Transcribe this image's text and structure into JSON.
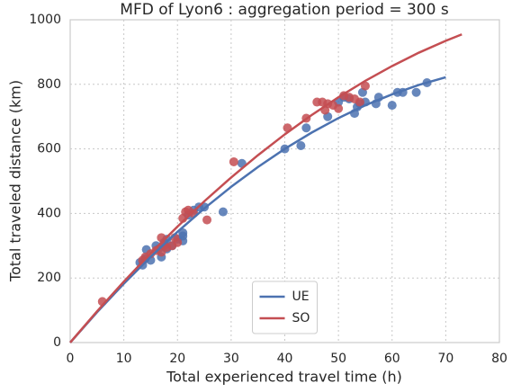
{
  "chart_data": {
    "type": "scatter",
    "title": "MFD of Lyon6 : aggregation period = 300 s",
    "x_label": "Total experienced travel time (h)",
    "y_label": "Total traveled distance (km)",
    "xlim": [
      0,
      80
    ],
    "xticks": [
      0,
      10,
      20,
      30,
      40,
      50,
      60,
      70,
      80
    ],
    "ylim": [
      0,
      1000
    ],
    "yticks": [
      0,
      200,
      400,
      600,
      800,
      1000
    ],
    "grid": true,
    "legend": "lower center",
    "series": [
      {
        "name": "UE",
        "color": "#4c72b0",
        "x": [
          0,
          5,
          10,
          15,
          20,
          25,
          30,
          35,
          40,
          45,
          50,
          55,
          60,
          65,
          70
        ],
        "values": [
          0,
          94,
          182.5,
          265.7,
          343,
          415.6,
          482.5,
          543.9,
          600,
          650.4,
          695.5,
          735.2,
          769,
          798.3,
          822
        ],
        "points": {
          "x": [
            13,
            13.5,
            14,
            14.2,
            15,
            16,
            16.5,
            17,
            17.5,
            18,
            18,
            19,
            20,
            21,
            21,
            21,
            22,
            23,
            24,
            25,
            28.5,
            32,
            40,
            43,
            44,
            48,
            50,
            51,
            52,
            53,
            53.5,
            54,
            54.5,
            55,
            57,
            57.5,
            60,
            61,
            62,
            64.5,
            66.5
          ],
          "values": [
            248,
            240,
            260,
            288,
            255,
            300,
            290,
            265,
            310,
            320,
            290,
            300,
            320,
            340,
            315,
            330,
            395,
            410,
            420,
            420,
            405,
            555,
            600,
            610,
            665,
            700,
            745,
            760,
            755,
            710,
            730,
            740,
            775,
            745,
            740,
            760,
            735,
            775,
            775,
            775,
            805
          ]
        }
      },
      {
        "name": "SO",
        "color": "#c44e52",
        "x": [
          0,
          5,
          10,
          15,
          20,
          25,
          30,
          35,
          40,
          45,
          50,
          55,
          60,
          65,
          70,
          73
        ],
        "values": [
          0,
          96.7,
          188.9,
          276.5,
          359.3,
          437.7,
          511.3,
          580.5,
          645,
          704.8,
          760,
          810.7,
          856.7,
          898.2,
          934.9,
          954.8
        ],
        "points": {
          "x": [
            6,
            13.5,
            14,
            15,
            16,
            17,
            17,
            17.5,
            18,
            19,
            19.5,
            20,
            21,
            21.5,
            22,
            23,
            25.5,
            30.5,
            40.5,
            44,
            46,
            47,
            47.5,
            48,
            49,
            50,
            51,
            52,
            53,
            54,
            55
          ],
          "values": [
            127,
            255,
            265,
            275,
            285,
            280,
            325,
            300,
            295,
            300,
            325,
            310,
            385,
            405,
            410,
            400,
            380,
            560,
            665,
            695,
            745,
            745,
            720,
            740,
            735,
            725,
            765,
            760,
            755,
            745,
            795
          ]
        }
      }
    ]
  }
}
